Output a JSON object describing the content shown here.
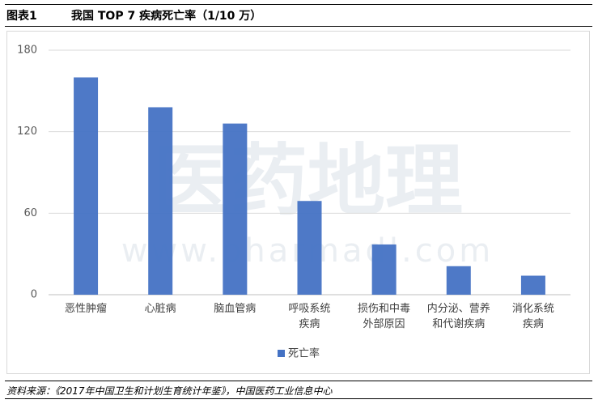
{
  "header": {
    "label": "图表1",
    "title": "我国 TOP 7 疾病死亡率（1/10 万）"
  },
  "chart_data": {
    "type": "bar",
    "categories": [
      "恶性肿瘤",
      "心脏病",
      "脑血管病",
      "呼吸系统\n疾病",
      "损伤和中毒\n外部原因",
      "内分泌、营养\n和代谢疾病",
      "消化系统\n疾病"
    ],
    "series": [
      {
        "name": "死亡率",
        "color": "#4472c4",
        "values": [
          160,
          138,
          126,
          69,
          37,
          21,
          14
        ]
      }
    ],
    "ylim": [
      0,
      180
    ],
    "yticks": [
      0,
      60,
      120,
      180
    ],
    "grid": true,
    "legend": "bottom",
    "watermark": [
      "医药地理",
      "www.pharmadl.com"
    ]
  },
  "source": "资料来源：《2017年中国卫生和计划生育统计年鉴》，中国医药工业信息中心"
}
